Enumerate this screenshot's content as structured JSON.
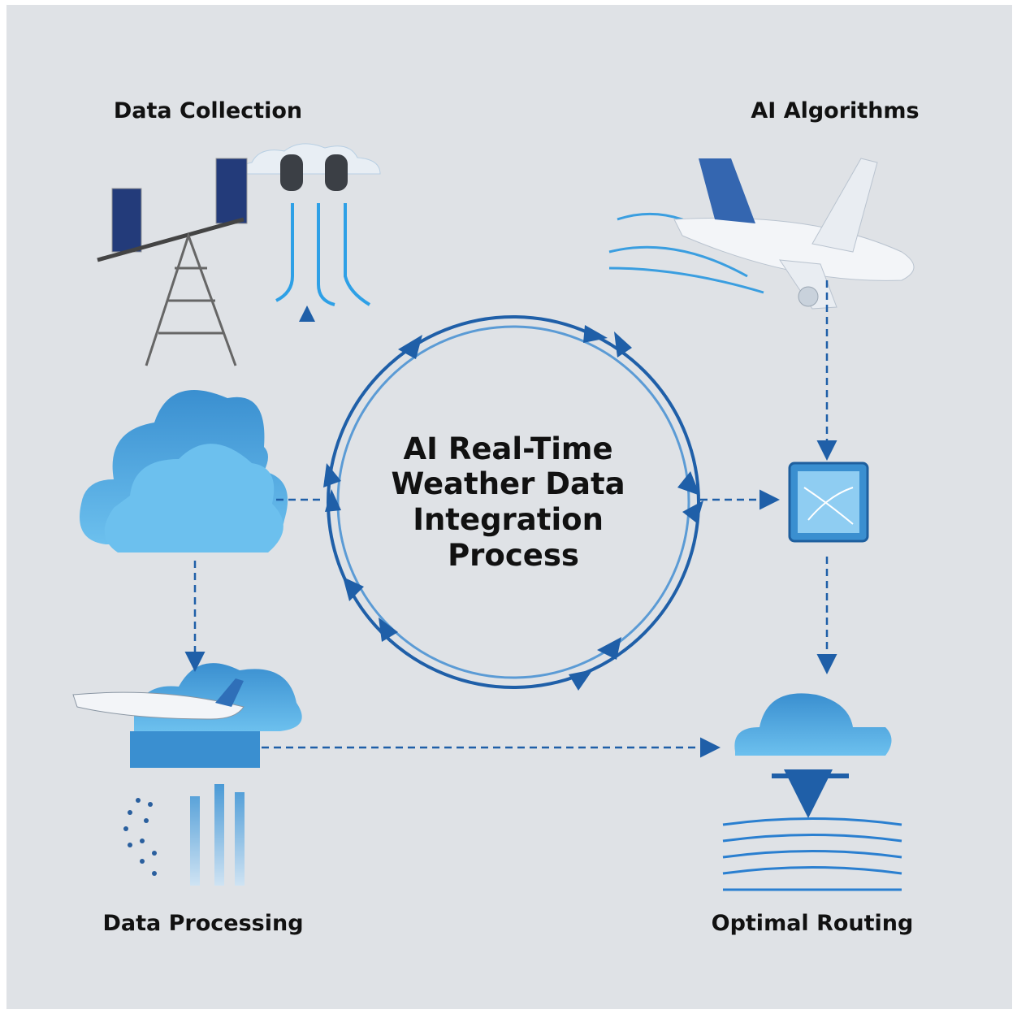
{
  "center": {
    "title_lines": [
      "AI Real-Time",
      "Weather Data",
      "Integration",
      "Process"
    ]
  },
  "nodes": [
    {
      "label": "Data Collection"
    },
    {
      "label": "AI Algorithms"
    },
    {
      "label": "Data Processing"
    },
    {
      "label": "Optimal Routing"
    }
  ]
}
